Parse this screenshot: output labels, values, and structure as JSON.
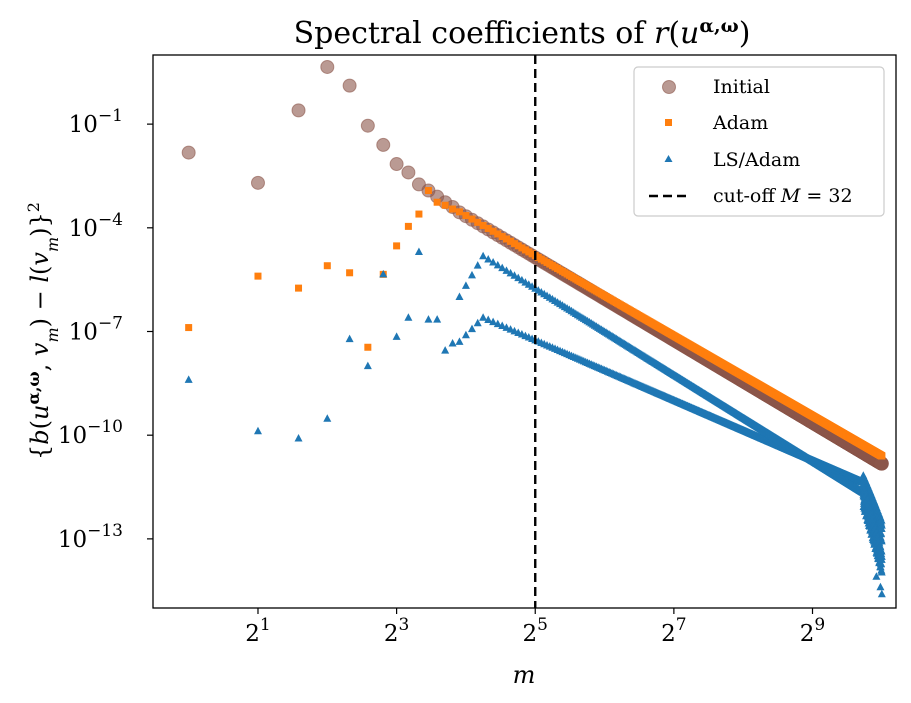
{
  "chart_data": {
    "type": "scatter",
    "title": "Spectral coefficients of r(u^{α,ω})",
    "xlabel": "m",
    "ylabel": "{b(u^{α,ω}, v_m) − l(v_m)}^2",
    "x_scale": "log2",
    "y_scale": "log10",
    "xlim": [
      0.7,
      1180
    ],
    "ylim": [
      1e-15,
      10.0
    ],
    "x_ticks": [
      2,
      8,
      32,
      128,
      512
    ],
    "x_tick_labels": [
      "2^1",
      "2^3",
      "2^5",
      "2^7",
      "2^9"
    ],
    "y_ticks": [
      1e-13,
      1e-10,
      1e-07,
      0.0001,
      0.1
    ],
    "y_tick_labels": [
      "10^-13",
      "10^-10",
      "10^-7",
      "10^-4",
      "10^-1"
    ],
    "grid": false,
    "legend_position": "top-right",
    "cutoff": {
      "x": 32,
      "label": "cut-off M = 32",
      "style": "dashed",
      "color": "#000000"
    },
    "series": [
      {
        "name": "Initial",
        "marker": "circle",
        "color": "#8c564b",
        "alpha": 0.6,
        "explicit_points": [
          [
            1,
            0.015
          ],
          [
            2,
            0.002
          ],
          [
            3,
            0.25
          ],
          [
            4,
            4.5
          ],
          [
            5,
            1.3
          ],
          [
            6,
            0.09
          ],
          [
            7,
            0.025
          ],
          [
            8,
            0.007
          ],
          [
            9,
            0.004
          ],
          [
            10,
            0.0018
          ],
          [
            11,
            0.0012
          ],
          [
            12,
            0.0008
          ],
          [
            13,
            0.00055
          ],
          [
            14,
            0.0004
          ]
        ],
        "power_law": {
          "x_start": 15,
          "x_end": 1024,
          "y_start": 0.00028,
          "y_end": 1.5e-11
        }
      },
      {
        "name": "Adam",
        "marker": "square",
        "color": "#ff7f0e",
        "alpha": 1,
        "explicit_points": [
          [
            1,
            1.3e-07
          ],
          [
            2,
            4e-06
          ],
          [
            3,
            1.8e-06
          ],
          [
            4,
            8e-06
          ],
          [
            5,
            5e-06
          ],
          [
            6,
            3.5e-08
          ],
          [
            7,
            4.5e-06
          ],
          [
            8,
            3e-05
          ],
          [
            9,
            0.00011
          ],
          [
            10,
            0.00025
          ],
          [
            11,
            0.0012
          ],
          [
            12,
            0.00055
          ],
          [
            13,
            0.00045
          ],
          [
            14,
            0.00035
          ]
        ],
        "power_law": {
          "x_start": 15,
          "x_end": 1024,
          "y_start": 0.00029,
          "y_end": 2.5e-11
        }
      },
      {
        "name": "LS/Adam",
        "marker": "triangle",
        "color": "#1f77b4",
        "alpha": 1,
        "explicit_points": [
          [
            1,
            4e-09
          ],
          [
            2,
            1.3e-10
          ],
          [
            3,
            8e-11
          ],
          [
            4,
            3e-10
          ],
          [
            5,
            6e-08
          ],
          [
            6,
            1e-08
          ],
          [
            7,
            4.5e-06
          ],
          [
            8,
            7e-08
          ],
          [
            9,
            2.5e-07
          ],
          [
            10,
            2e-05
          ],
          [
            11,
            2.2e-07
          ],
          [
            12,
            2.2e-07
          ],
          [
            13,
            2.8e-08
          ],
          [
            14,
            4.5e-08
          ]
        ],
        "branches": [
          {
            "x_start": 15,
            "x_peak": 19,
            "x_end": 1024,
            "y_start": 5e-08,
            "y_peak": 2.5e-07,
            "y_end": 2.5e-12,
            "tail_end": 2e-13
          },
          {
            "x_start": 15,
            "x_peak": 19,
            "x_end": 1024,
            "y_start": 1e-06,
            "y_peak": 1.5e-05,
            "y_end": 1e-12,
            "tail_end": 2.5e-14
          }
        ],
        "outliers": [
          [
            970,
            8e-15
          ],
          [
            1010,
            4e-15
          ],
          [
            1024,
            2.5e-15
          ]
        ]
      }
    ]
  }
}
